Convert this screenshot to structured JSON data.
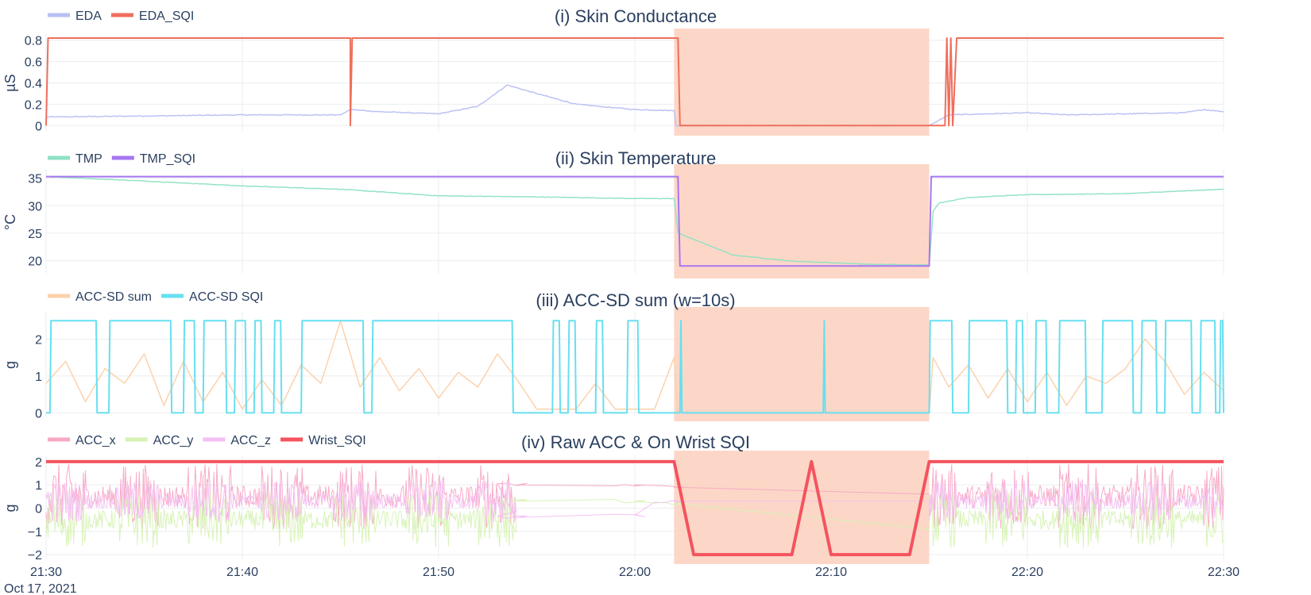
{
  "chart_data": [
    {
      "type": "line",
      "title": "(i) Skin Conductance",
      "ylabel": "µS",
      "ylim": [
        -0.05,
        0.85
      ],
      "yticks": [
        0,
        0.2,
        0.4,
        0.6,
        0.8
      ],
      "ytick_labels": [
        "0",
        "0.2",
        "0.4",
        "0.6",
        "0.8"
      ],
      "shaded_region": [
        "22:02",
        "22:15"
      ],
      "legend": [
        "EDA",
        "EDA_SQI"
      ],
      "series": [
        {
          "name": "EDA",
          "color": "#b8bff2",
          "width": 1.5,
          "points": [
            [
              "21:30",
              0.08
            ],
            [
              "21:35",
              0.09
            ],
            [
              "21:40",
              0.1
            ],
            [
              "21:45",
              0.1
            ],
            [
              "21:45.5",
              0.15
            ],
            [
              "21:47",
              0.13
            ],
            [
              "21:50",
              0.11
            ],
            [
              "21:52",
              0.18
            ],
            [
              "21:53.5",
              0.38
            ],
            [
              "21:55",
              0.3
            ],
            [
              "21:57",
              0.2
            ],
            [
              "22:00",
              0.15
            ],
            [
              "22:02",
              0.14
            ],
            [
              "22:02.1",
              0.0
            ],
            [
              "22:15",
              0.0
            ],
            [
              "22:16",
              0.1
            ],
            [
              "22:20",
              0.12
            ],
            [
              "22:22",
              0.1
            ],
            [
              "22:25",
              0.11
            ],
            [
              "22:28",
              0.12
            ],
            [
              "22:29",
              0.15
            ],
            [
              "22:30",
              0.13
            ]
          ]
        },
        {
          "name": "EDA_SQI",
          "color": "#ef6f5c",
          "width": 2,
          "points": [
            [
              "21:30",
              0.0
            ],
            [
              "21:30.1",
              0.82
            ],
            [
              "21:45.5",
              0.82
            ],
            [
              "21:45.5",
              0.0
            ],
            [
              "21:45.6",
              0.82
            ],
            [
              "22:02.2",
              0.82
            ],
            [
              "22:02.3",
              0.0
            ],
            [
              "22:15.8",
              0.0
            ],
            [
              "22:15.9",
              0.82
            ],
            [
              "22:16",
              0.0
            ],
            [
              "22:16.1",
              0.82
            ],
            [
              "22:16.2",
              0.0
            ],
            [
              "22:16.4",
              0.82
            ],
            [
              "22:30",
              0.82
            ]
          ]
        }
      ]
    },
    {
      "type": "line",
      "title": "(ii) Skin Temperature",
      "ylabel": "°C",
      "ylim": [
        17.6,
        36.4
      ],
      "yticks": [
        20,
        25,
        30,
        35
      ],
      "ytick_labels": [
        "20",
        "25",
        "30",
        "35"
      ],
      "shaded_region": [
        "22:02",
        "22:15"
      ],
      "legend": [
        "TMP",
        "TMP_SQI"
      ],
      "series": [
        {
          "name": "TMP",
          "color": "#8fe1c3",
          "width": 1.5,
          "points": [
            [
              "21:30",
              35.3
            ],
            [
              "21:35",
              34.5
            ],
            [
              "21:40",
              33.6
            ],
            [
              "21:45",
              33.0
            ],
            [
              "21:50",
              31.8
            ],
            [
              "21:55",
              31.6
            ],
            [
              "22:00",
              31.3
            ],
            [
              "22:02",
              31.3
            ],
            [
              "22:02.2",
              25.0
            ],
            [
              "22:05",
              21.0
            ],
            [
              "22:08",
              19.9
            ],
            [
              "22:12",
              19.3
            ],
            [
              "22:15",
              19.2
            ],
            [
              "22:15.2",
              29.0
            ],
            [
              "22:15.5",
              30.5
            ],
            [
              "22:17",
              31.5
            ],
            [
              "22:20",
              32.0
            ],
            [
              "22:25",
              32.2
            ],
            [
              "22:30",
              33.0
            ]
          ]
        },
        {
          "name": "TMP_SQI",
          "color": "#a777f0",
          "width": 2,
          "points": [
            [
              "21:30",
              35.3
            ],
            [
              "22:02.2",
              35.3
            ],
            [
              "22:02.3",
              19.0
            ],
            [
              "22:15",
              19.0
            ],
            [
              "22:15.1",
              35.3
            ],
            [
              "22:30",
              35.3
            ]
          ]
        }
      ]
    },
    {
      "type": "line",
      "title": "(iii) ACC-SD sum (w=10s)",
      "ylabel": "g",
      "ylim": [
        -0.1,
        2.7
      ],
      "yticks": [
        0,
        1,
        2
      ],
      "ytick_labels": [
        "0",
        "1",
        "2"
      ],
      "shaded_region": [
        "22:02",
        "22:15"
      ],
      "legend": [
        "ACC-SD sum",
        "ACC-SD SQI"
      ],
      "series": [
        {
          "name": "ACC-SD sum",
          "color": "#fbd0aa",
          "width": 1.5,
          "points": [
            [
              "21:30",
              0.8
            ],
            [
              "21:31",
              1.4
            ],
            [
              "21:32",
              0.3
            ],
            [
              "21:33",
              1.2
            ],
            [
              "21:34",
              0.8
            ],
            [
              "21:35",
              1.6
            ],
            [
              "21:36",
              0.2
            ],
            [
              "21:37",
              1.4
            ],
            [
              "21:38",
              0.3
            ],
            [
              "21:39",
              1.1
            ],
            [
              "21:40",
              0.1
            ],
            [
              "21:41",
              0.9
            ],
            [
              "21:42",
              0.2
            ],
            [
              "21:43",
              1.3
            ],
            [
              "21:44",
              0.8
            ],
            [
              "21:45",
              2.5
            ],
            [
              "21:46",
              0.7
            ],
            [
              "21:47",
              1.5
            ],
            [
              "21:48",
              0.6
            ],
            [
              "21:49",
              1.2
            ],
            [
              "21:50",
              0.4
            ],
            [
              "21:51",
              1.1
            ],
            [
              "21:52",
              0.7
            ],
            [
              "21:53",
              1.6
            ],
            [
              "21:54",
              0.9
            ],
            [
              "21:55",
              0.1
            ],
            [
              "21:57",
              0.1
            ],
            [
              "21:58",
              0.8
            ],
            [
              "21:59",
              0.1
            ],
            [
              "22:01",
              0.1
            ],
            [
              "22:02",
              1.5
            ],
            [
              "22:02.2",
              0.0
            ],
            [
              "22:15",
              0.0
            ],
            [
              "22:15.2",
              1.5
            ],
            [
              "22:16",
              0.7
            ],
            [
              "22:17",
              1.3
            ],
            [
              "22:18",
              0.4
            ],
            [
              "22:19",
              1.2
            ],
            [
              "22:20",
              0.3
            ],
            [
              "22:21",
              1.1
            ],
            [
              "22:22",
              0.2
            ],
            [
              "22:23",
              1.0
            ],
            [
              "22:24",
              0.8
            ],
            [
              "22:25",
              1.2
            ],
            [
              "22:26",
              2.0
            ],
            [
              "22:27",
              1.4
            ],
            [
              "22:28",
              0.5
            ],
            [
              "22:29",
              1.1
            ],
            [
              "22:30",
              0.6
            ]
          ]
        },
        {
          "name": "ACC-SD SQI",
          "color": "#67dff0",
          "width": 2,
          "step_levels": [
            0,
            2.5
          ],
          "intervals_high": [
            [
              "21:30.2",
              "21:32.6"
            ],
            [
              "21:33.2",
              "21:36.4"
            ],
            [
              "21:37",
              "21:37.6"
            ],
            [
              "21:38",
              "21:39.2"
            ],
            [
              "21:39.6",
              "21:40.2"
            ],
            [
              "21:40.6",
              "21:41"
            ],
            [
              "21:41.6",
              "21:42"
            ],
            [
              "21:43",
              "21:46.2"
            ],
            [
              "21:46.6",
              "21:53.8"
            ],
            [
              "21:55.8",
              "21:56.2"
            ],
            [
              "21:56.6",
              "21:57"
            ],
            [
              "21:58",
              "21:58.4"
            ],
            [
              "21:59.6",
              "22:00.2"
            ],
            [
              "22:02.3",
              "22:02.4"
            ],
            [
              "22:09.6",
              "22:09.7"
            ],
            [
              "22:15",
              "22:16.2"
            ],
            [
              "22:17",
              "22:19"
            ],
            [
              "22:19.4",
              "22:19.8"
            ],
            [
              "22:20.4",
              "22:21"
            ],
            [
              "22:21.6",
              "22:23"
            ],
            [
              "22:23.8",
              "22:25.4"
            ],
            [
              "22:25.8",
              "22:26.6"
            ],
            [
              "22:27",
              "22:28.4"
            ],
            [
              "22:28.8",
              "22:29.6"
            ],
            [
              "22:29.8",
              "22:30"
            ]
          ]
        }
      ]
    },
    {
      "type": "line",
      "title": "(iv) Raw ACC & On Wrist SQI",
      "ylabel": "g",
      "ylim": [
        -2.2,
        2.2
      ],
      "yticks": [
        -2,
        -1,
        0,
        1,
        2
      ],
      "ytick_labels": [
        "−2",
        "−1",
        "0",
        "1",
        "2"
      ],
      "shaded_region": [
        "22:02",
        "22:15"
      ],
      "legend": [
        "ACC_x",
        "ACC_y",
        "ACC_z",
        "Wrist_SQI"
      ],
      "series": [
        {
          "name": "ACC_x",
          "color": "#f8a8c6",
          "width": 1,
          "mean": 0.5,
          "amp": 1.4,
          "noisy_intervals": [
            [
              "21:30",
              "21:54"
            ],
            [
              "22:15",
              "22:30"
            ]
          ],
          "quiet_points": [
            [
              "21:54",
              1.0
            ],
            [
              "22:00",
              1.0
            ],
            [
              "22:02",
              0.9
            ],
            [
              "22:15",
              0.6
            ]
          ]
        },
        {
          "name": "ACC_y",
          "color": "#d6f2b4",
          "width": 1,
          "mean": -0.5,
          "amp": 1.2,
          "noisy_intervals": [
            [
              "21:30",
              "21:54"
            ],
            [
              "22:15",
              "22:30"
            ]
          ],
          "quiet_points": [
            [
              "21:54",
              0.3
            ],
            [
              "22:00",
              0.3
            ],
            [
              "22:02",
              0.2
            ],
            [
              "22:15",
              -0.9
            ]
          ]
        },
        {
          "name": "ACC_z",
          "color": "#f3bff2",
          "width": 1,
          "mean": 0.3,
          "amp": 0.9,
          "noisy_intervals": [
            [
              "21:30",
              "21:54"
            ],
            [
              "22:15",
              "22:30"
            ]
          ],
          "quiet_points": [
            [
              "21:54",
              -0.4
            ],
            [
              "22:00",
              -0.3
            ],
            [
              "22:02",
              0.3
            ],
            [
              "22:15",
              0.3
            ]
          ]
        },
        {
          "name": "Wrist_SQI",
          "color": "#f4535f",
          "width": 4,
          "points": [
            [
              "21:30",
              2
            ],
            [
              "22:02",
              2
            ],
            [
              "22:03",
              -2
            ],
            [
              "22:08",
              -2
            ],
            [
              "22:09",
              2
            ],
            [
              "22:10",
              -2
            ],
            [
              "22:14",
              -2
            ],
            [
              "22:15",
              2
            ],
            [
              "22:30",
              2
            ]
          ]
        }
      ]
    }
  ],
  "x_axis": {
    "range": [
      "21:30",
      "22:30"
    ],
    "tick_labels": [
      "21:30",
      "21:40",
      "21:50",
      "22:00",
      "22:10",
      "22:20",
      "22:30"
    ],
    "date_label": "Oct 17, 2021"
  },
  "colors": {
    "shading": "#fbd0bd",
    "grid": "#ebedf1",
    "text": "#2a3f5f"
  }
}
